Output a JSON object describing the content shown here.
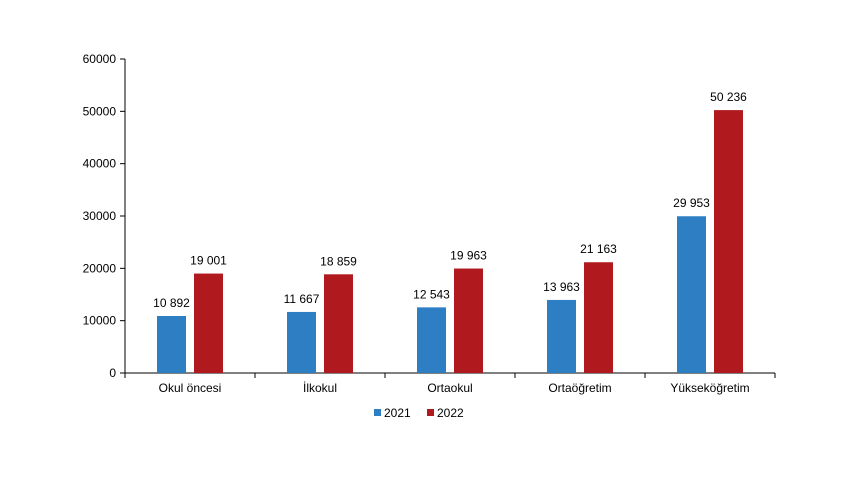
{
  "chart_data": {
    "type": "bar",
    "categories": [
      "Okul öncesi",
      "İlkokul",
      "Ortaokul",
      "Ortaöğretim",
      "Yükseköğretim"
    ],
    "series": [
      {
        "name": "2021",
        "color": "#2e7ec4",
        "values": [
          10892,
          11667,
          12543,
          13963,
          29953
        ],
        "labels": [
          "10 892",
          "11 667",
          "12 543",
          "13 963",
          "29 953"
        ]
      },
      {
        "name": "2022",
        "color": "#b01a1e",
        "values": [
          19001,
          18859,
          19963,
          21163,
          50236
        ],
        "labels": [
          "19 001",
          "18 859",
          "19 963",
          "21 163",
          "50 236"
        ]
      }
    ],
    "ylim": [
      0,
      60000
    ],
    "yticks": [
      0,
      10000,
      20000,
      30000,
      40000,
      50000,
      60000
    ],
    "ytick_labels": [
      "0",
      "10000",
      "20000",
      "30000",
      "40000",
      "50000",
      "60000"
    ],
    "grid": false,
    "legend_position": "bottom"
  }
}
